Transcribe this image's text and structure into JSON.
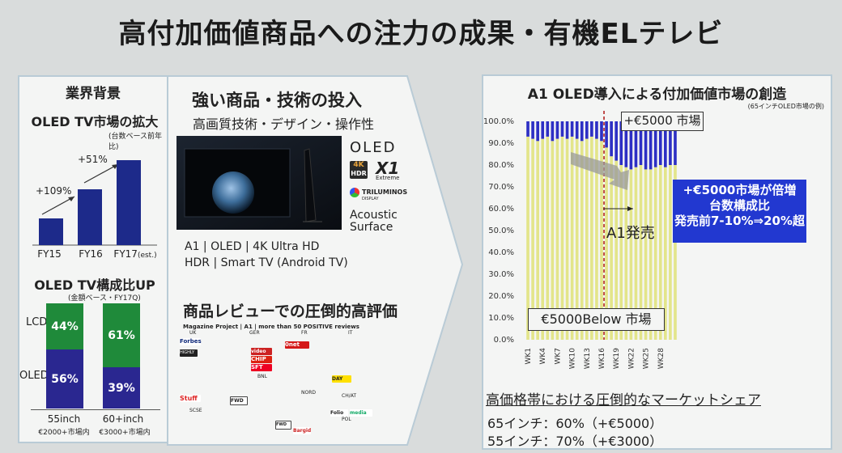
{
  "slide": {
    "title": "高付加価値商品への注力の成果・有機ELテレビ"
  },
  "left": {
    "header": "業界背景",
    "growth_title": "OLED TV市場の拡大",
    "growth_note": "(台数ベース前年比)",
    "growth_labels": [
      "+109%",
      "+51%"
    ],
    "fy": [
      "FY15",
      "FY16",
      "FY17"
    ],
    "fy_est": "(est.)",
    "growth_values": [
      1.0,
      2.09,
      3.16
    ],
    "comp_title": "OLED TV構成比UP",
    "comp_note": "(金額ベース・FY17Q)",
    "lcd_label": "LCD",
    "oled_label": "OLED",
    "comp": [
      {
        "lcd": "44%",
        "oled": "56%",
        "lcd_v": 44,
        "oled_v": 56,
        "size": "55inch",
        "note": "€2000+市場内"
      },
      {
        "lcd": "61%",
        "oled": "39%",
        "lcd_v": 61,
        "oled_v": 39,
        "size": "60+inch",
        "note": "€3000+市場内"
      }
    ]
  },
  "middle": {
    "header": "強い商品・技術の投入",
    "sub": "高画質技術・デザイン・操作性",
    "logo_oled": "OLED",
    "logo_4k": "4K",
    "logo_hdr": "HDR",
    "logo_x1": "X1",
    "logo_x1_sub": "Extreme",
    "logo_tri": "TRILUMINOS",
    "logo_tri_sub": "DISPLAY",
    "logo_acoustic_1": "Acoustic",
    "logo_acoustic_2": "Surface",
    "specs_1": "A1 | OLED | 4K Ultra HD",
    "specs_2": "HDR | Smart TV (Android TV)",
    "review_header": "商品レビューでの圧倒的高評価",
    "review_caption": "Magazine Project | A1 | more than 50 POSITIVE reviews",
    "countries": [
      "UK",
      "GER",
      "FR",
      "IT",
      "BNL",
      "NORD",
      "CH/AT",
      "SCSE",
      "POL"
    ],
    "review_logos": [
      "Forbes",
      "HIGHLY",
      "Stuff",
      "FWD",
      "0net",
      "video",
      "CHIP",
      "SFT",
      "DAY",
      "Folio",
      "media",
      "FWD",
      "Bargid"
    ]
  },
  "right": {
    "header": "A1 OLED導入による付加価値市場の創造",
    "header_note": "(65インチOLED市場の例)",
    "callout_top": "+€5000 市場",
    "callout_bottom": "€5000Below 市場",
    "launch_label": "A1発売",
    "blue_1": "+€5000市場が倍増",
    "blue_2": "台数構成比",
    "blue_3": "発売前7-10%⇒20%超",
    "share_title": "高価格帯における圧倒的なマーケットシェア",
    "share_1": "65インチ：60%（+€5000）",
    "share_2": "55インチ：70%（+€3000）"
  },
  "chart_data": {
    "type": "bar",
    "stacked": true,
    "x": [
      "WK1",
      "WK2",
      "WK3",
      "WK4",
      "WK5",
      "WK6",
      "WK7",
      "WK8",
      "WK9",
      "WK10",
      "WK11",
      "WK12",
      "WK13",
      "WK14",
      "WK15",
      "WK16",
      "WK17",
      "WK18",
      "WK19",
      "WK20",
      "WK21",
      "WK22",
      "WK23",
      "WK24",
      "WK25",
      "WK26",
      "WK27",
      "WK28",
      "WK29",
      "WK30",
      "WK31"
    ],
    "x_tick_labels": [
      "WK1",
      "WK4",
      "WK7",
      "WK10",
      "WK13",
      "WK16",
      "WK19",
      "WK22",
      "WK25",
      "WK28"
    ],
    "y_ticks": [
      "0.0%",
      "10.0%",
      "20.0%",
      "30.0%",
      "40.0%",
      "50.0%",
      "60.0%",
      "70.0%",
      "80.0%",
      "90.0%",
      "100.0%"
    ],
    "ylim": [
      0,
      100
    ],
    "launch_week": "WK16",
    "series": [
      {
        "values": [
          93,
          92,
          91,
          92,
          93,
          91,
          92,
          93,
          92,
          93,
          92,
          91,
          92,
          93,
          92,
          91,
          88,
          84,
          82,
          80,
          79,
          78,
          79,
          80,
          78,
          78,
          79,
          80,
          79,
          80,
          80
        ]
      },
      {
        "values": [
          7,
          8,
          9,
          8,
          7,
          9,
          8,
          7,
          8,
          7,
          8,
          9,
          8,
          7,
          8,
          9,
          12,
          16,
          18,
          20,
          21,
          22,
          21,
          20,
          22,
          22,
          21,
          20,
          21,
          20,
          20
        ]
      }
    ],
    "colors": {
      "below": "#e3e58a",
      "above": "#2d2fc4",
      "launch_line": "#b32424"
    }
  }
}
